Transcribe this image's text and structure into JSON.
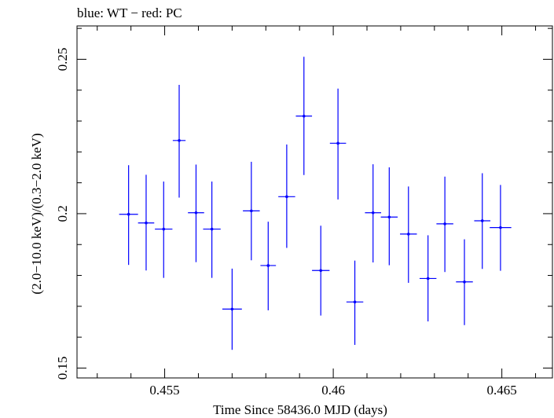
{
  "chart_data": {
    "type": "scatter",
    "title": "blue: WT − red: PC",
    "xlabel": "Time Since 58436.0 MJD (days)",
    "ylabel": "(2.0−10.0 keV)/(0.3−2.0 keV)",
    "xlim": [
      0.4524,
      0.4665
    ],
    "ylim": [
      0.1468,
      0.2608
    ],
    "xticks": [
      0.455,
      0.46,
      0.465
    ],
    "xtick_labels": [
      "0.455",
      "0.46",
      "0.465"
    ],
    "yticks": [
      0.15,
      0.2,
      0.25
    ],
    "ytick_labels": [
      "0.15",
      "0.2",
      "0.25"
    ],
    "grid": false,
    "series": [
      {
        "color": "#0000ff",
        "points": [
          {
            "x": 0.45393,
            "y": 0.1998,
            "xerr": 0.00028,
            "ylo": 0.1834,
            "yhi": 0.2157
          },
          {
            "x": 0.45445,
            "y": 0.197,
            "xerr": 0.00024,
            "ylo": 0.1816,
            "yhi": 0.2126
          },
          {
            "x": 0.45497,
            "y": 0.195,
            "xerr": 0.00026,
            "ylo": 0.1792,
            "yhi": 0.2104
          },
          {
            "x": 0.45543,
            "y": 0.2237,
            "xerr": 0.00019,
            "ylo": 0.2052,
            "yhi": 0.2417
          },
          {
            "x": 0.45593,
            "y": 0.2003,
            "xerr": 0.00024,
            "ylo": 0.1843,
            "yhi": 0.2159
          },
          {
            "x": 0.4564,
            "y": 0.195,
            "xerr": 0.00026,
            "ylo": 0.1792,
            "yhi": 0.2104
          },
          {
            "x": 0.457,
            "y": 0.1691,
            "xerr": 0.00029,
            "ylo": 0.1559,
            "yhi": 0.1822
          },
          {
            "x": 0.45757,
            "y": 0.2009,
            "xerr": 0.00025,
            "ylo": 0.1849,
            "yhi": 0.2168
          },
          {
            "x": 0.45807,
            "y": 0.1832,
            "xerr": 0.00023,
            "ylo": 0.1687,
            "yhi": 0.1974
          },
          {
            "x": 0.45862,
            "y": 0.2055,
            "xerr": 0.00025,
            "ylo": 0.1889,
            "yhi": 0.2224
          },
          {
            "x": 0.45913,
            "y": 0.2316,
            "xerr": 0.00024,
            "ylo": 0.2125,
            "yhi": 0.2508
          },
          {
            "x": 0.45963,
            "y": 0.1816,
            "xerr": 0.00026,
            "ylo": 0.167,
            "yhi": 0.1961
          },
          {
            "x": 0.46014,
            "y": 0.2228,
            "xerr": 0.00024,
            "ylo": 0.2046,
            "yhi": 0.2405
          },
          {
            "x": 0.46064,
            "y": 0.1714,
            "xerr": 0.00025,
            "ylo": 0.1575,
            "yhi": 0.1848
          },
          {
            "x": 0.46118,
            "y": 0.2003,
            "xerr": 0.00024,
            "ylo": 0.1842,
            "yhi": 0.216
          },
          {
            "x": 0.46166,
            "y": 0.1989,
            "xerr": 0.00025,
            "ylo": 0.1833,
            "yhi": 0.215
          },
          {
            "x": 0.46223,
            "y": 0.1934,
            "xerr": 0.00025,
            "ylo": 0.1776,
            "yhi": 0.2088
          },
          {
            "x": 0.46281,
            "y": 0.179,
            "xerr": 0.00025,
            "ylo": 0.1651,
            "yhi": 0.193
          },
          {
            "x": 0.46331,
            "y": 0.1967,
            "xerr": 0.00025,
            "ylo": 0.1811,
            "yhi": 0.212
          },
          {
            "x": 0.46389,
            "y": 0.1779,
            "xerr": 0.00025,
            "ylo": 0.1639,
            "yhi": 0.1917
          },
          {
            "x": 0.46442,
            "y": 0.1977,
            "xerr": 0.00024,
            "ylo": 0.1821,
            "yhi": 0.2131
          },
          {
            "x": 0.46496,
            "y": 0.1955,
            "xerr": 0.00032,
            "ylo": 0.1815,
            "yhi": 0.2093
          }
        ]
      }
    ]
  }
}
